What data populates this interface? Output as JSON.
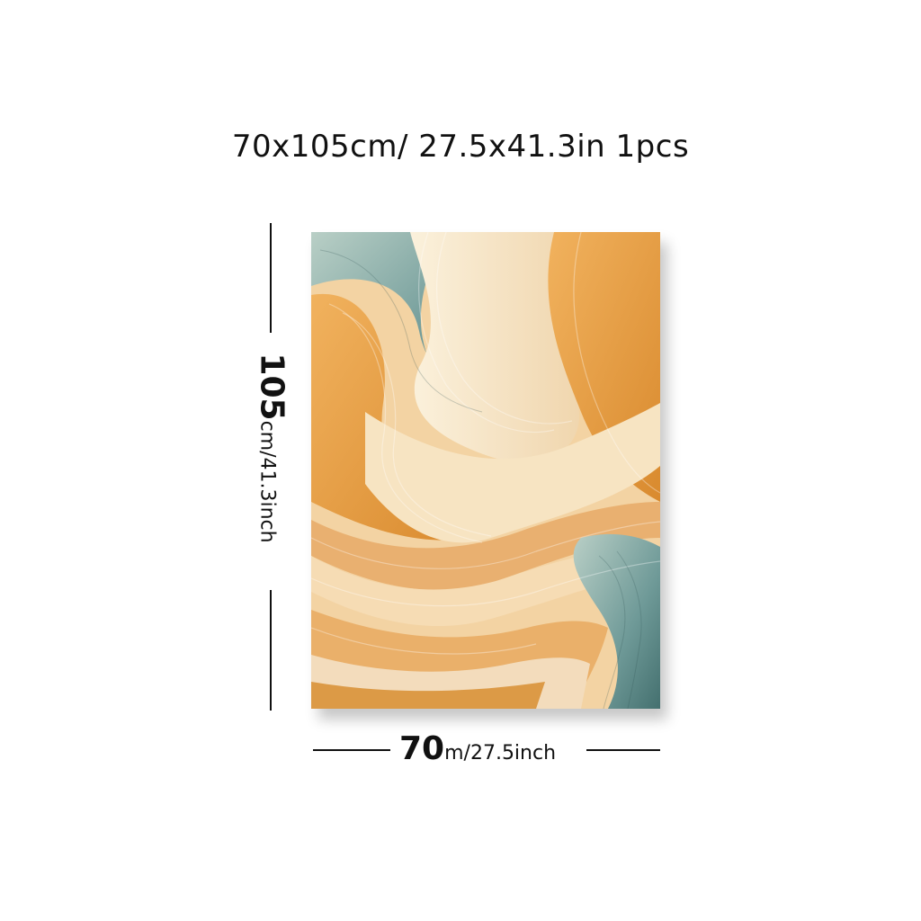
{
  "title": "70x105cm/ 27.5x41.3in 1pcs",
  "height_label": {
    "value": "105",
    "unit": "cm/41.3inch"
  },
  "width_label": {
    "value": "70",
    "unit": "m/27.5inch"
  },
  "palette": {
    "orange": "#e8a048",
    "cream": "#f6e6c8",
    "teal": "#6f9a98",
    "peach": "#f2c38c"
  }
}
